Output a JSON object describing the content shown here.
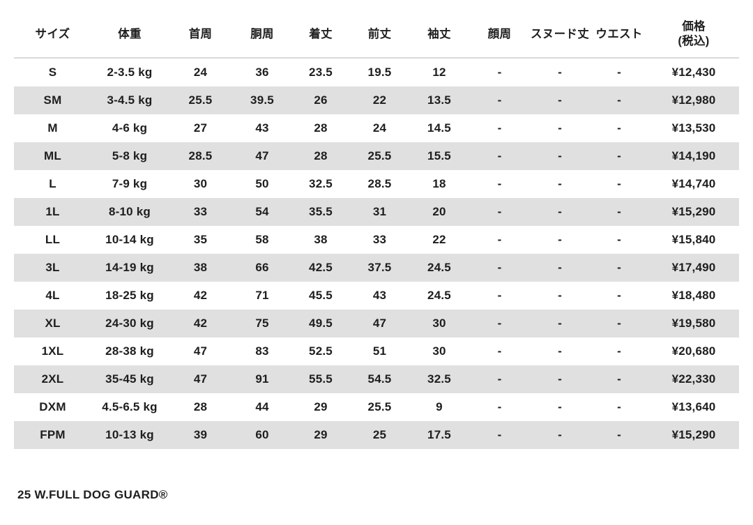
{
  "table": {
    "headers": [
      "サイズ",
      "体重",
      "首周",
      "胴周",
      "着丈",
      "前丈",
      "袖丈",
      "顔周",
      "スヌード丈",
      "ウエスト",
      "価格\n(税込)"
    ],
    "rows": [
      [
        "S",
        "2-3.5 kg",
        "24",
        "36",
        "23.5",
        "19.5",
        "12",
        "-",
        "-",
        "-",
        "¥12,430"
      ],
      [
        "SM",
        "3-4.5 kg",
        "25.5",
        "39.5",
        "26",
        "22",
        "13.5",
        "-",
        "-",
        "-",
        "¥12,980"
      ],
      [
        "M",
        "4-6 kg",
        "27",
        "43",
        "28",
        "24",
        "14.5",
        "-",
        "-",
        "-",
        "¥13,530"
      ],
      [
        "ML",
        "5-8 kg",
        "28.5",
        "47",
        "28",
        "25.5",
        "15.5",
        "-",
        "-",
        "-",
        "¥14,190"
      ],
      [
        "L",
        "7-9 kg",
        "30",
        "50",
        "32.5",
        "28.5",
        "18",
        "-",
        "-",
        "-",
        "¥14,740"
      ],
      [
        "1L",
        "8-10 kg",
        "33",
        "54",
        "35.5",
        "31",
        "20",
        "-",
        "-",
        "-",
        "¥15,290"
      ],
      [
        "LL",
        "10-14 kg",
        "35",
        "58",
        "38",
        "33",
        "22",
        "-",
        "-",
        "-",
        "¥15,840"
      ],
      [
        "3L",
        "14-19 kg",
        "38",
        "66",
        "42.5",
        "37.5",
        "24.5",
        "-",
        "-",
        "-",
        "¥17,490"
      ],
      [
        "4L",
        "18-25 kg",
        "42",
        "71",
        "45.5",
        "43",
        "24.5",
        "-",
        "-",
        "-",
        "¥18,480"
      ],
      [
        "XL",
        "24-30 kg",
        "42",
        "75",
        "49.5",
        "47",
        "30",
        "-",
        "-",
        "-",
        "¥19,580"
      ],
      [
        "1XL",
        "28-38 kg",
        "47",
        "83",
        "52.5",
        "51",
        "30",
        "-",
        "-",
        "-",
        "¥20,680"
      ],
      [
        "2XL",
        "35-45 kg",
        "47",
        "91",
        "55.5",
        "54.5",
        "32.5",
        "-",
        "-",
        "-",
        "¥22,330"
      ],
      [
        "DXM",
        "4.5-6.5 kg",
        "28",
        "44",
        "29",
        "25.5",
        "9",
        "-",
        "-",
        "-",
        "¥13,640"
      ],
      [
        "FPM",
        "10-13 kg",
        "39",
        "60",
        "29",
        "25",
        "17.5",
        "-",
        "-",
        "-",
        "¥15,290"
      ]
    ],
    "stripe_color": "#e0e0e0",
    "divider_color": "#d8d8d8",
    "text_color": "#1e1e1e"
  },
  "footer": {
    "label": "25 W.FULL DOG GUARD®"
  }
}
